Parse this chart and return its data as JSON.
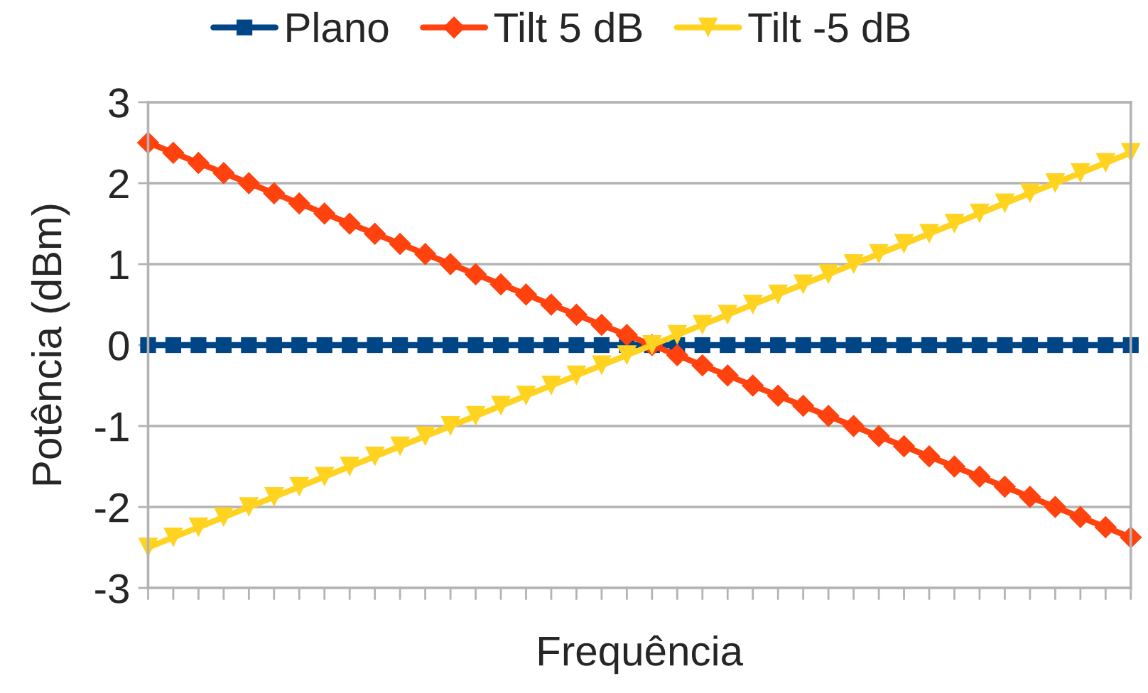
{
  "chart_data": {
    "type": "line",
    "xlabel": "Frequência",
    "ylabel": "Potência (dBm)",
    "categories": [
      null,
      null,
      null,
      null,
      null,
      null,
      null,
      null,
      null,
      null,
      null,
      null,
      null,
      null,
      null,
      null,
      null,
      null,
      null,
      null,
      null,
      null,
      null,
      null,
      null,
      null,
      null,
      null,
      null,
      null,
      null,
      null,
      null,
      null,
      null,
      null,
      null,
      null,
      null,
      null
    ],
    "series": [
      {
        "name": "Plano",
        "color": "#004586",
        "marker": "square",
        "values": [
          0,
          0,
          0,
          0,
          0,
          0,
          0,
          0,
          0,
          0,
          0,
          0,
          0,
          0,
          0,
          0,
          0,
          0,
          0,
          0,
          0,
          0,
          0,
          0,
          0,
          0,
          0,
          0,
          0,
          0,
          0,
          0,
          0,
          0,
          0,
          0,
          0,
          0,
          0,
          0
        ]
      },
      {
        "name": "Tilt 5 dB",
        "color": "#ff420e",
        "marker": "diamond",
        "values": [
          2.5,
          2.375,
          2.25,
          2.125,
          2,
          1.875,
          1.75,
          1.625,
          1.5,
          1.375,
          1.25,
          1.125,
          1,
          0.875,
          0.75,
          0.625,
          0.5,
          0.375,
          0.25,
          0.125,
          0,
          -0.125,
          -0.25,
          -0.375,
          -0.5,
          -0.625,
          -0.75,
          -0.875,
          -1,
          -1.125,
          -1.25,
          -1.375,
          -1.5,
          -1.625,
          -1.75,
          -1.875,
          -2,
          -2.125,
          -2.25,
          -2.375
        ]
      },
      {
        "name": "Tilt -5 dB",
        "color": "#ffd320",
        "marker": "triangle",
        "values": [
          -2.5,
          -2.375,
          -2.25,
          -2.125,
          -2,
          -1.875,
          -1.75,
          -1.625,
          -1.5,
          -1.375,
          -1.25,
          -1.125,
          -1,
          -0.875,
          -0.75,
          -0.625,
          -0.5,
          -0.375,
          -0.25,
          -0.125,
          0,
          0.125,
          0.25,
          0.375,
          0.5,
          0.625,
          0.75,
          0.875,
          1,
          1.125,
          1.25,
          1.375,
          1.5,
          1.625,
          1.75,
          1.875,
          2,
          2.125,
          2.25,
          2.375
        ]
      }
    ],
    "ylim": [
      -3,
      3
    ],
    "yticks": [
      -3,
      -2,
      -1,
      0,
      1,
      2,
      3
    ],
    "grid": "y",
    "legend": "top",
    "line_style": "solid",
    "tick_labels": "y"
  }
}
